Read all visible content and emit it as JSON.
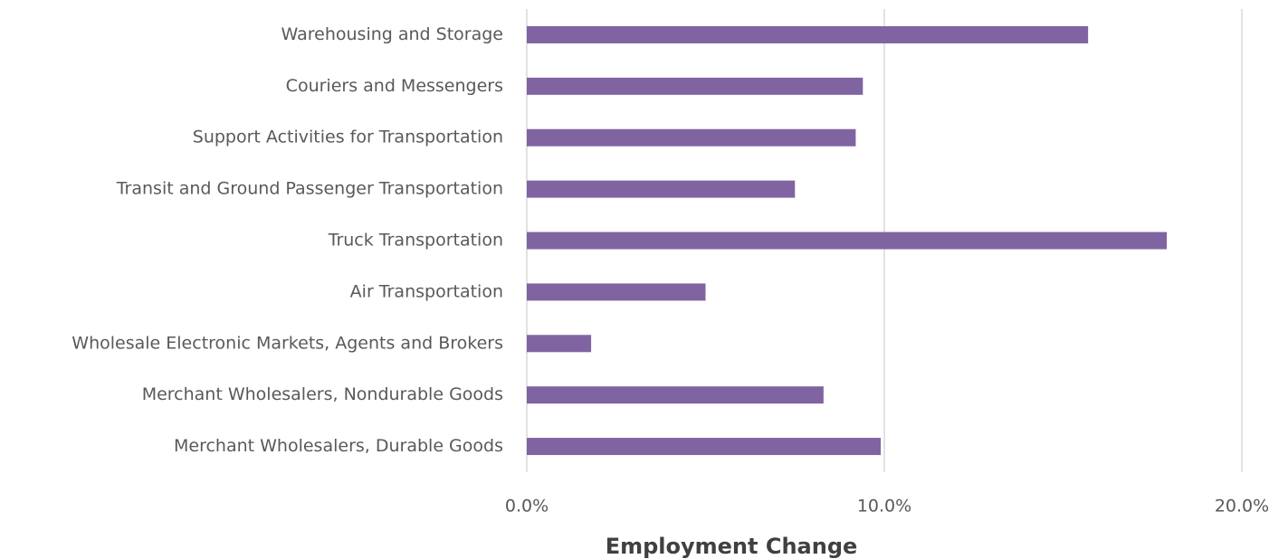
{
  "chart_data": {
    "type": "barh",
    "xlabel": "Employment Change",
    "categories": [
      "Warehousing and Storage",
      "Couriers and Messengers",
      "Support Activities for Transportation",
      "Transit and Ground Passenger Transportation",
      "Truck Transportation",
      "Air Transportation",
      "Wholesale Electronic Markets, Agents and Brokers",
      "Merchant Wholesalers, Nondurable Goods",
      "Merchant Wholesalers, Durable Goods"
    ],
    "values": [
      15.7,
      9.4,
      9.2,
      7.5,
      17.9,
      5.0,
      1.8,
      8.3,
      9.9
    ],
    "color": "#8064a2",
    "xlim": [
      0,
      20
    ],
    "xticks": [
      {
        "value": 0,
        "label": "0.0%"
      },
      {
        "value": 10,
        "label": "10.0%"
      },
      {
        "value": 20,
        "label": "20.0%"
      }
    ],
    "grid": true
  }
}
